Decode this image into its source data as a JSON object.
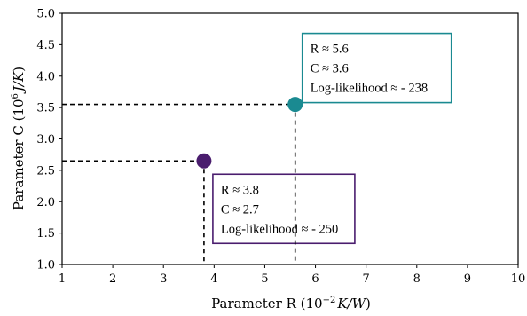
{
  "chart_data": {
    "type": "scatter",
    "xlabel_main": "Parameter R (10",
    "xlabel_exp": "−2",
    "xlabel_unit": "K/W",
    "xlabel_close": ")",
    "ylabel_main": "Parameter C (10",
    "ylabel_exp": "6",
    "ylabel_unit": "J/K",
    "ylabel_close": ")",
    "xlim": [
      1,
      10
    ],
    "ylim": [
      1.0,
      5.0
    ],
    "x_ticks": [
      1,
      2,
      3,
      4,
      5,
      6,
      7,
      8,
      9,
      10
    ],
    "x_tick_labels": [
      "1",
      "2",
      "3",
      "4",
      "5",
      "6",
      "7",
      "8",
      "9",
      "10"
    ],
    "y_ticks": [
      1.0,
      1.5,
      2.0,
      2.5,
      3.0,
      3.5,
      4.0,
      4.5,
      5.0
    ],
    "y_tick_labels": [
      "1.0",
      "1.5",
      "2.0",
      "2.5",
      "3.0",
      "3.5",
      "4.0",
      "4.5",
      "5.0"
    ],
    "grid": false,
    "points": [
      {
        "x": 3.8,
        "y": 2.65,
        "color": "#4a1d6e",
        "annotation": [
          "R ≈ 3.8",
          "C ≈ 2.7",
          "Log-likelihood ≈ - 250"
        ]
      },
      {
        "x": 5.6,
        "y": 3.55,
        "color": "#1a8a91",
        "annotation": [
          "R ≈ 5.6",
          "C ≈ 3.6",
          "Log-likelihood ≈ - 238"
        ]
      }
    ]
  }
}
